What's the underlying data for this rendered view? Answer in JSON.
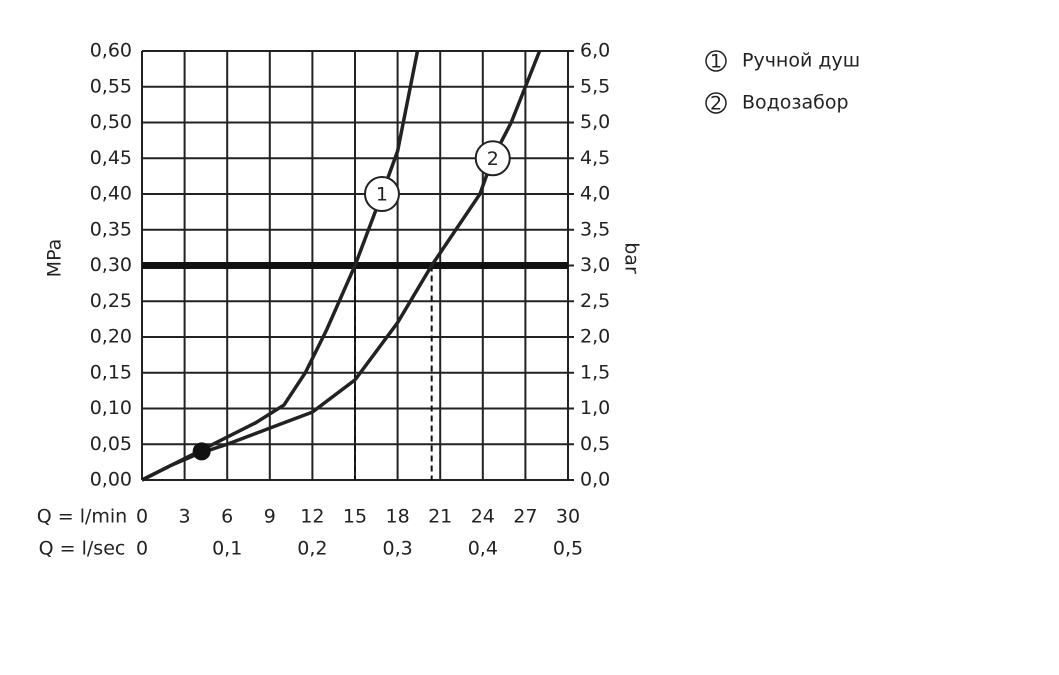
{
  "chart_data": {
    "type": "line",
    "x_label": "Q = l/min",
    "x2_label": "Q = l/sec",
    "y_label": "MPa",
    "y2_label": "bar",
    "xlim": [
      0,
      30
    ],
    "xticks": [
      0,
      3,
      6,
      9,
      12,
      15,
      18,
      21,
      24,
      27,
      30
    ],
    "x2lim": [
      0,
      0.5
    ],
    "x2ticks": [
      0,
      {
        "value": 0.1,
        "label": "0,1"
      },
      {
        "value": 0.2,
        "label": "0,2"
      },
      {
        "value": 0.3,
        "label": "0,3"
      },
      {
        "value": 0.4,
        "label": "0,4"
      },
      {
        "value": 0.5,
        "label": "0,5"
      }
    ],
    "ylim": [
      0,
      0.6
    ],
    "yticks": [
      {
        "value": 0,
        "label": "0,00"
      },
      {
        "value": 0.05,
        "label": "0,05"
      },
      {
        "value": 0.1,
        "label": "0,10"
      },
      {
        "value": 0.15,
        "label": "0,15"
      },
      {
        "value": 0.2,
        "label": "0,20"
      },
      {
        "value": 0.25,
        "label": "0,25"
      },
      {
        "value": 0.3,
        "label": "0,30"
      },
      {
        "value": 0.35,
        "label": "0,35"
      },
      {
        "value": 0.4,
        "label": "0,40"
      },
      {
        "value": 0.45,
        "label": "0,45"
      },
      {
        "value": 0.5,
        "label": "0,50"
      },
      {
        "value": 0.55,
        "label": "0,55"
      },
      {
        "value": 0.6,
        "label": "0,60"
      }
    ],
    "y2lim": [
      0,
      6
    ],
    "y2ticks": [
      {
        "value": 0,
        "label": "0,0"
      },
      {
        "value": 0.5,
        "label": "0,5"
      },
      {
        "value": 1,
        "label": "1,0"
      },
      {
        "value": 1.5,
        "label": "1,5"
      },
      {
        "value": 2,
        "label": "2,0"
      },
      {
        "value": 2.5,
        "label": "2,5"
      },
      {
        "value": 3,
        "label": "3,0"
      },
      {
        "value": 3.5,
        "label": "3,5"
      },
      {
        "value": 4,
        "label": "4,0"
      },
      {
        "value": 4.5,
        "label": "4,5"
      },
      {
        "value": 5,
        "label": "5,0"
      },
      {
        "value": 5.5,
        "label": "5,5"
      },
      {
        "value": 6,
        "label": "6,0"
      }
    ],
    "grid": true,
    "reference_line": 0.3,
    "drop_lines": [
      15,
      20.4
    ],
    "point": [
      4.2,
      0.04
    ],
    "series": [
      {
        "name": "Ручной душ",
        "label": "1",
        "color": "#222222",
        "x": [
          0,
          2,
          4,
          6,
          8,
          10,
          11.5,
          13,
          15,
          16.9,
          18,
          19.4
        ],
        "values": [
          0,
          0.02,
          0.04,
          0.06,
          0.08,
          0.105,
          0.15,
          0.21,
          0.3,
          0.4,
          0.46,
          0.6
        ]
      },
      {
        "name": "Водозабор",
        "label": "2",
        "color": "#222222",
        "x": [
          0,
          2,
          4,
          6,
          8,
          10,
          12,
          15,
          18,
          20.4,
          23.8,
          24.7,
          26,
          28
        ],
        "values": [
          0,
          0.02,
          0.037,
          0.05,
          0.065,
          0.08,
          0.095,
          0.14,
          0.22,
          0.3,
          0.4,
          0.45,
          0.5,
          0.6
        ]
      }
    ]
  }
}
